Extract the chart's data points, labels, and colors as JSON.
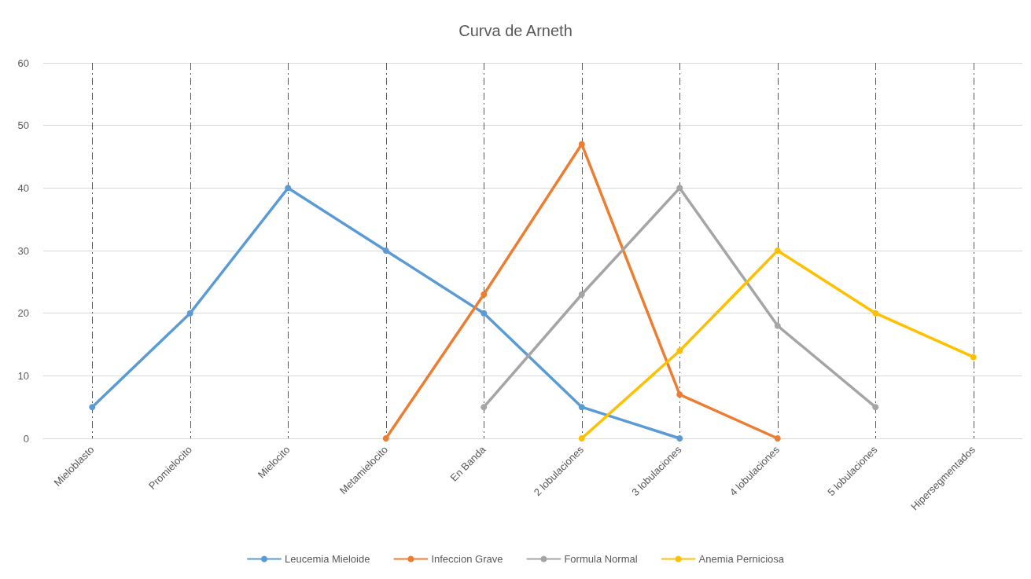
{
  "chart_data": {
    "type": "line",
    "title": "Curva de Arneth",
    "categories": [
      "Mieloblasto",
      "Promielocito",
      "Mielocito",
      "Metamielocito",
      "En Banda",
      "2 lobulaciones",
      "3 lobulaciones",
      "4 lobulaciones",
      "5 lobulaciones",
      "Hipersegmentados"
    ],
    "series": [
      {
        "name": "Leucemia Mieloide",
        "color": "#5b9bd5",
        "values": [
          5,
          20,
          40,
          30,
          20,
          5,
          0,
          null,
          null,
          null
        ]
      },
      {
        "name": "Infeccion Grave",
        "color": "#ed7d31",
        "values": [
          null,
          null,
          null,
          0,
          23,
          47,
          7,
          0,
          null,
          null
        ]
      },
      {
        "name": "Formula Normal",
        "color": "#a5a5a5",
        "values": [
          null,
          null,
          null,
          null,
          5,
          23,
          40,
          18,
          5,
          null
        ]
      },
      {
        "name": "Anemia Perniciosa",
        "color": "#ffc000",
        "values": [
          null,
          null,
          null,
          null,
          null,
          0,
          14,
          30,
          20,
          13
        ]
      }
    ],
    "ylim": [
      0,
      60
    ],
    "yticks": [
      0,
      10,
      20,
      30,
      40,
      50,
      60
    ],
    "grid": true,
    "legend": "bottom",
    "marker": "circle",
    "line_style": "solid"
  }
}
